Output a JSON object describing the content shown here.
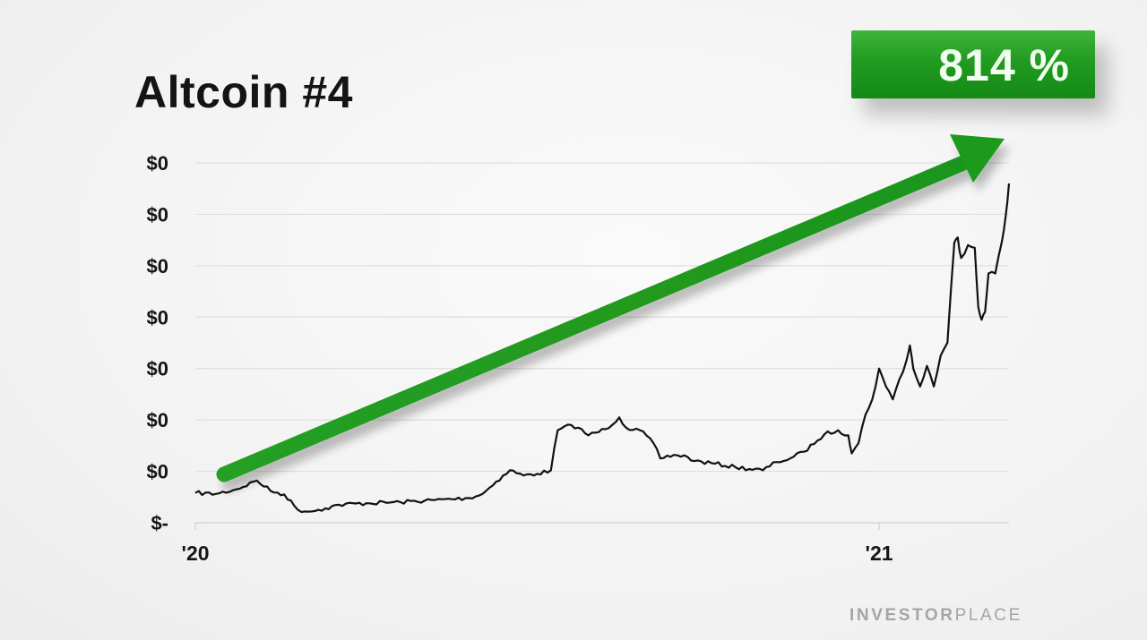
{
  "chart_data": {
    "type": "line",
    "title": "Altcoin #4",
    "annotation": "814 %",
    "y_tick_labels": [
      "$0",
      "$0",
      "$0",
      "$0",
      "$0",
      "$0",
      "$0",
      "$-"
    ],
    "x_tick_labels": [
      "'20",
      "'21"
    ],
    "xlim": [
      2020.0,
      2021.19
    ],
    "ylim": [
      0,
      7
    ],
    "grid": true,
    "line_color": "#111111",
    "arrow_color": "#1e9a1e",
    "badge_color": "#22a022",
    "series": [
      {
        "x": [
          2020.0,
          2020.03,
          2020.06,
          2020.09,
          2020.11,
          2020.13,
          2020.15,
          2020.17,
          2020.18,
          2020.19,
          2020.21,
          2020.25,
          2020.3,
          2020.35,
          2020.4,
          2020.42,
          2020.44,
          2020.46,
          2020.48,
          2020.5,
          2020.52,
          2020.53,
          2020.55,
          2020.56,
          2020.575,
          2020.6,
          2020.62,
          2020.63,
          2020.65,
          2020.67,
          2020.68,
          2020.7,
          2020.72,
          2020.73,
          2020.76,
          2020.79,
          2020.83,
          2020.85,
          2020.87,
          2020.89,
          2020.91,
          2020.92,
          2020.94,
          2020.955,
          2020.96,
          2020.97,
          2020.98,
          2020.99,
          2021.0,
          2021.01,
          2021.02,
          2021.03,
          2021.04,
          2021.045,
          2021.05,
          2021.06,
          2021.07,
          2021.08,
          2021.09,
          2021.1,
          2021.11,
          2021.115,
          2021.12,
          2021.13,
          2021.14,
          2021.145,
          2021.15,
          2021.155,
          2021.16,
          2021.17,
          2021.175,
          2021.18,
          2021.185,
          2021.19
        ],
        "y": [
          0.58,
          0.56,
          0.65,
          0.82,
          0.62,
          0.55,
          0.25,
          0.22,
          0.25,
          0.28,
          0.35,
          0.38,
          0.4,
          0.44,
          0.48,
          0.56,
          0.8,
          1.02,
          0.92,
          0.95,
          1.02,
          1.8,
          1.9,
          1.85,
          1.7,
          1.82,
          2.05,
          1.85,
          1.8,
          1.55,
          1.25,
          1.32,
          1.28,
          1.2,
          1.15,
          1.08,
          1.02,
          1.18,
          1.25,
          1.38,
          1.6,
          1.72,
          1.8,
          1.7,
          1.35,
          1.55,
          2.1,
          2.4,
          3.0,
          2.65,
          2.4,
          2.8,
          3.15,
          3.45,
          3.0,
          2.65,
          3.05,
          2.65,
          3.25,
          3.5,
          5.45,
          5.55,
          5.15,
          5.4,
          5.35,
          4.2,
          3.95,
          4.1,
          4.85,
          4.85,
          5.2,
          5.5,
          5.95,
          6.6
        ]
      }
    ]
  },
  "brand": {
    "bold": "INVESTOR",
    "light": "PLACE"
  }
}
